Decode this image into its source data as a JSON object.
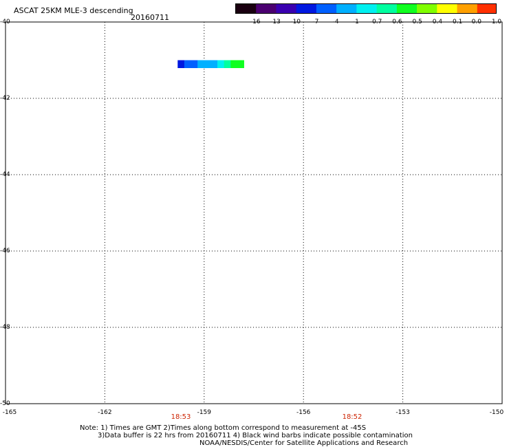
{
  "header": {
    "title": "ASCAT 25KM MLE-3 descending",
    "date": "20160711"
  },
  "colorbar": {
    "labels": [
      "-16",
      "-13",
      "-10",
      "-7",
      "-4",
      "-1",
      "-0.7",
      "-0.6",
      "-0.5",
      "-0.4",
      "-0.1",
      "0.0",
      "1.0"
    ],
    "colors": [
      "#1a0010",
      "#4b0070",
      "#3a00b0",
      "#0018e0",
      "#0060ff",
      "#00b0ff",
      "#00f0f0",
      "#00ffa0",
      "#10ff20",
      "#80ff00",
      "#ffff00",
      "#ffa000",
      "#ff3000"
    ]
  },
  "axes": {
    "y_ticks": [
      "-40",
      "-42",
      "-44",
      "-46",
      "-48",
      "-50"
    ],
    "x_ticks": [
      "-165",
      "-162",
      "-159",
      "-156",
      "-153",
      "-150"
    ]
  },
  "times": [
    "18:53",
    "18:52"
  ],
  "notes": {
    "line1": "Note: 1) Times are GMT 2)Times along bottom correspond to measurement at -45S",
    "line2": "3)Data buffer is 22 hrs from 20160711 4) Black wind barbs indicate possible contamination",
    "line3": "NOAA/NESDIS/Center for Satellite Applications and Research"
  },
  "map_data": {
    "lon_range": [
      -165,
      -150
    ],
    "lat_range": [
      -50,
      -40
    ],
    "cells": [
      {
        "lon": -159.7,
        "lat": -41.1,
        "color": "#0018e0"
      },
      {
        "lon": -159.5,
        "lat": -41.1,
        "color": "#0060ff"
      },
      {
        "lon": -159.3,
        "lat": -41.1,
        "color": "#0060ff"
      },
      {
        "lon": -159.1,
        "lat": -41.1,
        "color": "#00b0ff"
      },
      {
        "lon": -158.9,
        "lat": -41.1,
        "color": "#00b0ff"
      },
      {
        "lon": -158.7,
        "lat": -41.1,
        "color": "#00b0ff"
      },
      {
        "lon": -158.5,
        "lat": -41.1,
        "color": "#00f0f0"
      },
      {
        "lon": -158.3,
        "lat": -41.1,
        "color": "#00ffa0"
      },
      {
        "lon": -158.1,
        "lat": -41.1,
        "color": "#10ff20"
      },
      {
        "lon": -157.9,
        "lat": -41.1,
        "color": "#10ff20"
      }
    ]
  }
}
